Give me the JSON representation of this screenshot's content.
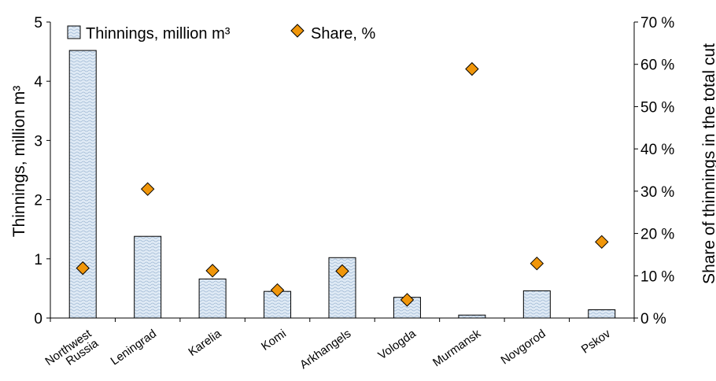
{
  "chart_data": {
    "type": "bar",
    "categories": [
      "Northwest Russia",
      "Leningrad",
      "Karelia",
      "Komi",
      "Arkhangels",
      "Vologda",
      "Murmansk",
      "Novgorod",
      "Pskov"
    ],
    "category_labels": [
      [
        "Northwest",
        "Russia"
      ],
      [
        "Leningrad"
      ],
      [
        "Karelia"
      ],
      [
        "Komi"
      ],
      [
        "Arkhangels"
      ],
      [
        "Vologda"
      ],
      [
        "Murmansk"
      ],
      [
        "Novgorod"
      ],
      [
        "Pskov"
      ]
    ],
    "series": [
      {
        "name": "Thinnings, million m³",
        "type": "bar",
        "axis": "left",
        "values": [
          4.52,
          1.38,
          0.66,
          0.45,
          1.02,
          0.35,
          0.05,
          0.46,
          0.14
        ]
      },
      {
        "name": "Share, %",
        "type": "scatter",
        "axis": "right",
        "values": [
          11.8,
          30.5,
          11.2,
          6.6,
          11.1,
          4.3,
          58.9,
          12.9,
          18.0
        ]
      }
    ],
    "ylabel": "Thinnings, million m³",
    "y2label": "Share of thinnings in the total cut",
    "ylim": [
      0,
      5
    ],
    "y2lim": [
      0,
      70
    ],
    "yticks": [
      "0",
      "1",
      "2",
      "3",
      "4",
      "5"
    ],
    "y2ticks": [
      "0 %",
      "10 %",
      "20 %",
      "30 %",
      "40 %",
      "50 %",
      "60 %",
      "70 %"
    ],
    "legend_position": "top",
    "grid": false,
    "colors": {
      "bar_fill": "#dfeaf5",
      "bar_stroke": "#000000",
      "marker_fill": "#f0960a",
      "marker_stroke": "#000000"
    }
  }
}
